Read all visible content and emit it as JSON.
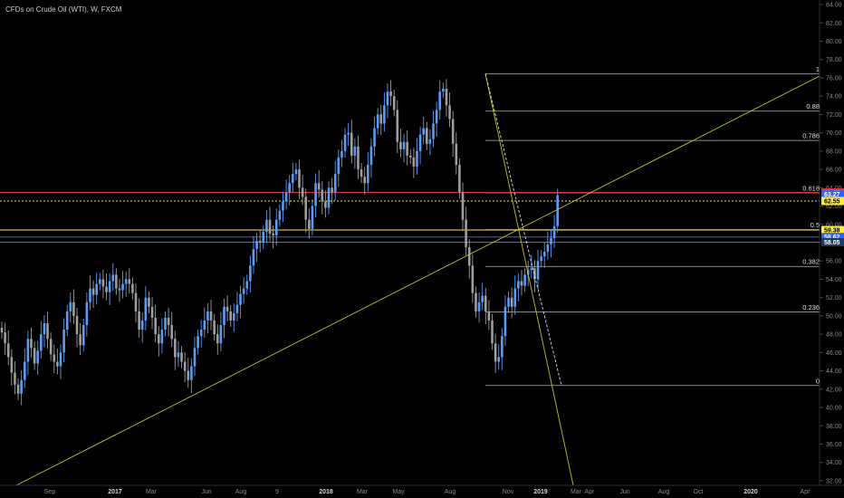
{
  "header": {
    "title": "CFDs on Crude Oil (WTI), W, FXCM"
  },
  "chart_data": {
    "type": "candlestick",
    "title": "CFDs on Crude Oil (WTI), W, FXCM",
    "grid": false,
    "y_range": [
      31.5,
      84.5
    ],
    "y_ticks": [
      32,
      34,
      36,
      38,
      40,
      42,
      44,
      46,
      48,
      50,
      52,
      54,
      56,
      58,
      60,
      62,
      64,
      66,
      68,
      70,
      72,
      74,
      76,
      78,
      80,
      82,
      84
    ],
    "x_ticks": [
      {
        "label": "Sep",
        "pos": 0
      },
      {
        "label": "2017",
        "pos": 1
      },
      {
        "label": "Mar",
        "pos": 2
      },
      {
        "label": "Jun",
        "pos": 3
      },
      {
        "label": "Aug",
        "pos": 4
      },
      {
        "label": "9",
        "pos": 5
      },
      {
        "label": "2018",
        "pos": 6
      },
      {
        "label": "Mar",
        "pos": 7
      },
      {
        "label": "May",
        "pos": 8
      },
      {
        "label": "Aug",
        "pos": 9
      },
      {
        "label": "Nov",
        "pos": 10
      },
      {
        "label": "2019",
        "pos": 11
      },
      {
        "label": "Mar",
        "pos": 12
      },
      {
        "label": "Apr",
        "pos": 13
      },
      {
        "label": "Jun",
        "pos": 14
      },
      {
        "label": "Aug",
        "pos": 15
      },
      {
        "label": "Oct",
        "pos": 16
      },
      {
        "label": "2020",
        "pos": 17
      },
      {
        "label": "Apr",
        "pos": 18
      }
    ],
    "closes": [
      48.2,
      47.0,
      45.5,
      43.8,
      42.5,
      41.5,
      43.0,
      45.0,
      47.5,
      46.5,
      44.8,
      46.2,
      48.0,
      49.2,
      47.5,
      45.8,
      45.0,
      44.5,
      46.0,
      48.5,
      50.5,
      51.5,
      50.0,
      48.0,
      46.8,
      49.0,
      51.5,
      53.0,
      52.3,
      53.5,
      54.0,
      53.2,
      52.6,
      53.8,
      54.5,
      53.0,
      52.8,
      53.5,
      54.0,
      53.5,
      52.5,
      50.5,
      48.5,
      49.5,
      52.0,
      51.0,
      49.8,
      48.0,
      47.0,
      48.5,
      49.8,
      49.0,
      47.5,
      45.5,
      46.0,
      45.0,
      44.0,
      43.0,
      44.5,
      46.5,
      47.8,
      48.5,
      49.5,
      50.5,
      49.5,
      48.0,
      47.0,
      49.0,
      51.0,
      50.5,
      49.5,
      50.3,
      51.2,
      52.4,
      53.0,
      53.8,
      55.5,
      57.3,
      58.2,
      58.0,
      59.2,
      60.5,
      59.0,
      58.8,
      60.5,
      61.5,
      62.5,
      63.5,
      64.5,
      65.5,
      66.0,
      64.0,
      63.0,
      60.5,
      59.5,
      62.0,
      64.5,
      63.8,
      62.5,
      61.8,
      64.0,
      63.5,
      65.5,
      67.3,
      68.0,
      69.8,
      70.0,
      67.5,
      68.5,
      66.0,
      65.2,
      64.5,
      66.5,
      68.5,
      70.5,
      72.0,
      71.0,
      73.0,
      74.5,
      74.0,
      72.5,
      69.0,
      68.2,
      69.0,
      67.5,
      67.3,
      66.3,
      68.0,
      69.8,
      70.5,
      68.8,
      69.3,
      71.0,
      72.5,
      74.5,
      74.8,
      73.0,
      71.5,
      68.8,
      66.5,
      63.5,
      60.5,
      57.5,
      55.5,
      52.5,
      50.5,
      51.5,
      52.2,
      50.5,
      49.5,
      47.0,
      45.0,
      45.5,
      47.8,
      51.0,
      52.0,
      51.0,
      53.0,
      53.8,
      53.3,
      54.5,
      55.0,
      55.2,
      54.0,
      56.0,
      56.5,
      57.0,
      57.8,
      58.5,
      59.8,
      63.2
    ],
    "horizontal_lines": [
      {
        "price": 63.47,
        "color": "#f23645",
        "style": "solid"
      },
      {
        "price": 62.55,
        "color": "#ffeb3b",
        "style": "dotted"
      },
      {
        "price": 59.38,
        "color": "#ffeb3b",
        "style": "solid"
      },
      {
        "price": 58.62,
        "color": "#2962ff",
        "style": "solid"
      },
      {
        "price": 58.05,
        "color": "#4a7aa8",
        "style": "solid"
      }
    ],
    "price_badges": [
      {
        "text": "63.47",
        "price": 63.47,
        "bg": "#f23645",
        "fg": "#ffffff"
      },
      {
        "text": "63.27",
        "price": 63.27,
        "bg": "#2962ff",
        "fg": "#ffffff"
      },
      {
        "text": "62.55",
        "price": 62.55,
        "bg": "#ffeb3b",
        "fg": "#000000"
      },
      {
        "text": "59.38",
        "price": 59.38,
        "bg": "#ffeb3b",
        "fg": "#000000"
      },
      {
        "text": "58.62",
        "price": 58.62,
        "bg": "#2962ff",
        "fg": "#ffffff"
      },
      {
        "text": "58.05",
        "price": 58.05,
        "bg": "#1e3a5f",
        "fg": "#ffffff"
      }
    ],
    "fibonacci": {
      "high": 76.45,
      "low": 42.4,
      "levels": [
        {
          "label": "1",
          "ratio": 1
        },
        {
          "label": "0.88",
          "ratio": 0.88
        },
        {
          "label": "0.786",
          "ratio": 0.786
        },
        {
          "label": "0.618",
          "ratio": 0.618
        },
        {
          "label": "0.5",
          "ratio": 0.5
        },
        {
          "label": "0.382",
          "ratio": 0.382
        },
        {
          "label": "0.236",
          "ratio": 0.236
        },
        {
          "label": "0",
          "ratio": 0
        }
      ],
      "color": "#d8d8d8"
    },
    "colors": {
      "up": "#5b9cf6",
      "down": "#9e9e9e",
      "trendline": "#c0c020",
      "price_scale_text": "#868993",
      "axis_text": "#868993"
    }
  }
}
